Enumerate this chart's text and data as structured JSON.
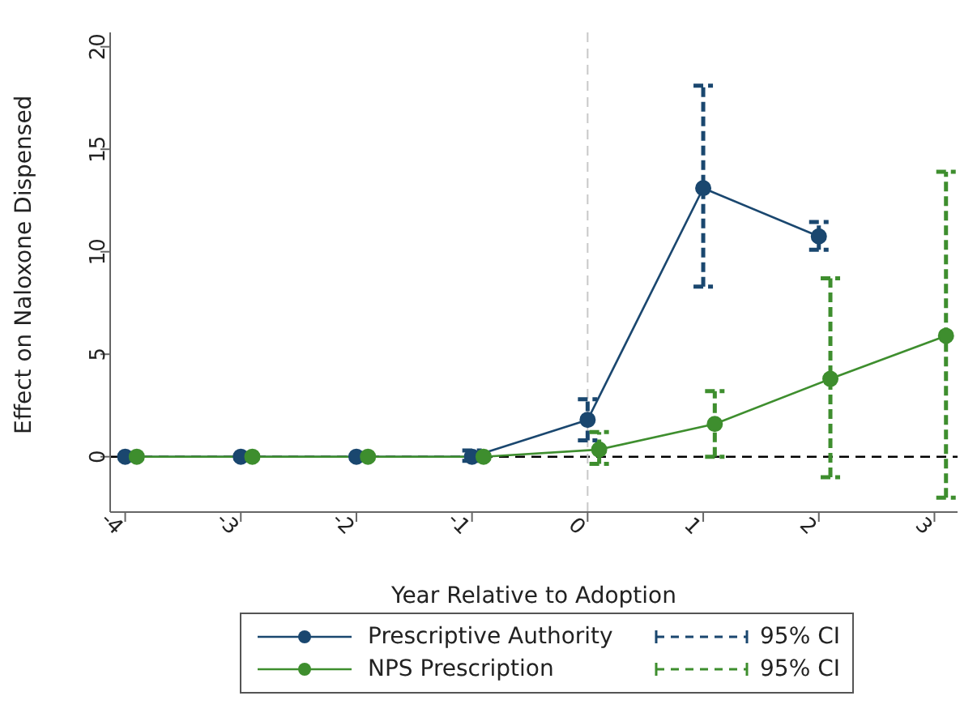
{
  "chart_data": {
    "type": "line",
    "xlabel": "Year Relative to Adoption",
    "ylabel": "Effect on Naloxone Dispensed",
    "xlim": [
      -4.13,
      3.2
    ],
    "xticks": [
      -4,
      -3,
      -2,
      -1,
      0,
      1,
      2,
      3
    ],
    "ylim": [
      -2.7,
      20.7
    ],
    "yticks": [
      0,
      5,
      10,
      15,
      20
    ],
    "series": [
      {
        "name": "Prescriptive Authority",
        "color": "#1a476f",
        "x": [
          -4,
          -3,
          -2,
          -1,
          0,
          1,
          2
        ],
        "values": [
          0,
          0,
          0,
          0,
          1.8,
          13.1,
          10.75
        ],
        "errors": [
          null,
          null,
          null,
          [
            -0.2,
            0.3
          ],
          [
            0.8,
            2.8
          ],
          [
            8.3,
            18.1
          ],
          [
            10.1,
            11.45
          ]
        ]
      },
      {
        "name": "NPS Prescription",
        "color": "#3e8e2e",
        "x": [
          -3.9,
          -2.9,
          -1.9,
          -0.9,
          0.1,
          1.1,
          2.1,
          3.1
        ],
        "values": [
          0,
          0,
          0,
          0,
          0.35,
          1.6,
          3.8,
          5.9
        ],
        "errors": [
          null,
          null,
          null,
          null,
          [
            -0.35,
            1.2
          ],
          [
            0,
            3.2
          ],
          [
            -1,
            8.7
          ],
          [
            -2,
            13.9
          ]
        ]
      }
    ],
    "ref_lines": [
      {
        "axis": "y",
        "value": 0,
        "color": "#000000",
        "line_style": "dashed"
      },
      {
        "axis": "x",
        "value": 0,
        "color": "#c8c8c8",
        "line_style": "dashed"
      }
    ],
    "annotations": [
      "95% CI",
      "95% CI"
    ],
    "marker": "circle",
    "legend": "bottom"
  }
}
